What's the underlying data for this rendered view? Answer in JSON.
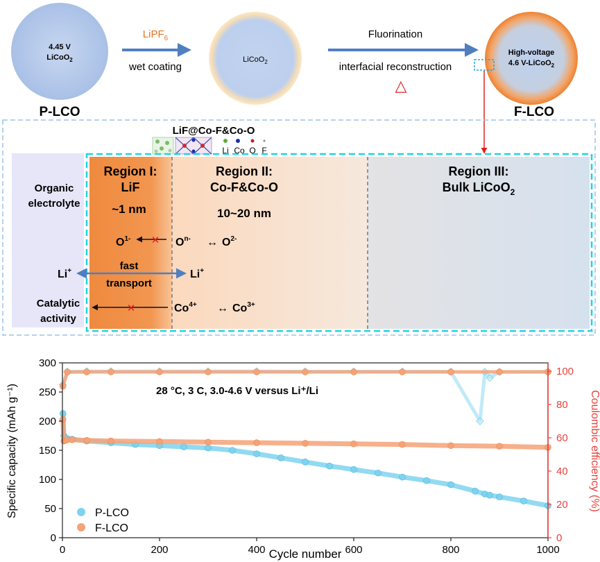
{
  "scheme": {
    "particle_p": {
      "line1": "4.45 V",
      "line2_base": "LiCoO",
      "line2_sub": "2",
      "label": "P-LCO"
    },
    "arrow1": {
      "reagent_base": "LiPF",
      "reagent_sub": "6",
      "caption": "wet coating"
    },
    "particle_mid": {
      "text_base": "LiCoO",
      "text_sub": "2"
    },
    "arrow2": {
      "top": "Fluorination",
      "bottom": "interfacial reconstruction",
      "heat_symbol": "△"
    },
    "particle_f": {
      "line1": "High-voltage",
      "line2_base": "4.6 V-LiCoO",
      "line2_sub": "2",
      "label": "F-LCO"
    },
    "structure_label": "LiF@Co-F&Co-O",
    "atom_legend": [
      "Li",
      "Co",
      "O",
      "F"
    ],
    "electrolyte_line1": "Organic",
    "electrolyte_line2": "electrolyte",
    "region1": {
      "title": "Region I:",
      "name": "LiF",
      "thickness": "~1 nm"
    },
    "region2": {
      "title": "Region II:",
      "name": "Co-F&Co-O",
      "thickness": "10~20 nm"
    },
    "region3": {
      "title": "Region III:",
      "name_base": "Bulk LiCoO",
      "name_sub": "2"
    },
    "oxygen_left": {
      "base": "O",
      "sup": "1-"
    },
    "oxygen_n": {
      "base": "O",
      "sup": "n-"
    },
    "oxygen_2": {
      "base": "O",
      "sup": "2-"
    },
    "double_arrow": "↔",
    "li_left": {
      "base": "Li",
      "sup": "+"
    },
    "li_right": {
      "base": "Li",
      "sup": "+"
    },
    "transport_line1": "fast",
    "transport_line2": "transport",
    "catalytic_line1": "Catalytic",
    "catalytic_line2": "activity",
    "co4": {
      "base": "Co",
      "sup": "4+"
    },
    "co3": {
      "base": "Co",
      "sup": "3+"
    },
    "cross_mark": "✕"
  },
  "colors": {
    "blue_particle": "#b7cbe9",
    "arrow_blue": "#4f7fbf",
    "orange": "#e8721f",
    "red": "#e02020",
    "cyan": "#1ed3e6",
    "p_lco": "#7fd3ef",
    "f_lco": "#f4a277",
    "ce_axis": "#e8413c"
  },
  "chart_data": {
    "type": "scatter",
    "annotation": "28 °C, 3 C, 3.0-4.6 V versus Li⁺/Li",
    "xlabel": "Cycle number",
    "ylabel_left": "Specific capacity (mAh g⁻¹)",
    "ylabel_right": "Coulombic efficiency (%)",
    "xlim": [
      0,
      1000
    ],
    "ylim_left": [
      0,
      300
    ],
    "ylim_right": [
      0,
      105
    ],
    "x_ticks": [
      0,
      200,
      400,
      600,
      800,
      1000
    ],
    "y_ticks_left": [
      0,
      50,
      100,
      150,
      200,
      250,
      300
    ],
    "y_ticks_right": [
      0,
      20,
      40,
      60,
      80,
      100
    ],
    "legend_position": "bottom-left",
    "series": [
      {
        "name": "P-LCO",
        "axis": "left",
        "marker": "circle",
        "x": [
          1,
          3,
          5,
          10,
          20,
          50,
          100,
          150,
          200,
          250,
          300,
          350,
          400,
          450,
          500,
          550,
          600,
          650,
          700,
          750,
          800,
          850,
          870,
          880,
          900,
          950,
          1000
        ],
        "values": [
          213,
          175,
          172,
          170,
          169,
          166,
          163,
          160,
          158,
          156,
          154,
          150,
          144,
          137,
          130,
          123,
          117,
          111,
          104,
          98,
          91,
          80,
          75,
          73,
          70,
          63,
          55
        ]
      },
      {
        "name": "F-LCO",
        "axis": "left",
        "marker": "circle",
        "x": [
          1,
          3,
          5,
          10,
          20,
          50,
          100,
          200,
          300,
          400,
          500,
          600,
          700,
          800,
          900,
          1000
        ],
        "values": [
          203,
          166,
          167,
          168,
          168,
          167,
          166,
          165,
          164,
          163,
          162,
          161,
          160,
          158,
          157,
          155
        ]
      },
      {
        "name": "P-LCO CE",
        "axis": "right",
        "marker": "diamond",
        "x": [
          1,
          10,
          50,
          100,
          200,
          300,
          400,
          500,
          600,
          700,
          800,
          860,
          870,
          880,
          900,
          1000
        ],
        "values": [
          92,
          99.8,
          99.9,
          99.9,
          99.9,
          99.9,
          99.9,
          99.8,
          99.8,
          99.8,
          99.7,
          70,
          99.6,
          96,
          99.6,
          99.7
        ]
      },
      {
        "name": "F-LCO CE",
        "axis": "right",
        "marker": "circle",
        "x": [
          1,
          10,
          50,
          100,
          200,
          300,
          400,
          500,
          600,
          700,
          800,
          900,
          1000
        ],
        "values": [
          91,
          99.5,
          99.6,
          99.6,
          99.6,
          99.6,
          99.6,
          99.6,
          99.6,
          99.6,
          99.6,
          99.6,
          99.6
        ]
      }
    ]
  }
}
